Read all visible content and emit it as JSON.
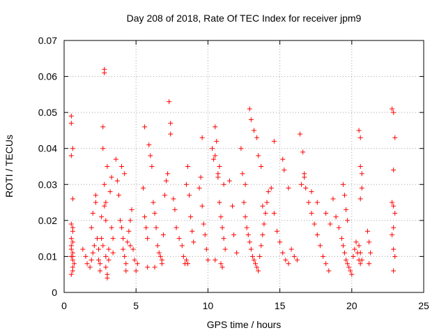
{
  "chart_data": {
    "type": "scatter",
    "title": "Day 208 of 2018, Rate Of TEC Index for receiver jpm9",
    "xlabel": "GPS time / hours",
    "ylabel": "ROTI / TECUs",
    "xlim": [
      0,
      25
    ],
    "ylim": [
      0,
      0.07
    ],
    "x_ticks": [
      0,
      5,
      10,
      15,
      20,
      25
    ],
    "x_tick_labels": [
      "0",
      "5",
      "10",
      "15",
      "20",
      "25"
    ],
    "y_ticks": [
      0,
      0.01,
      0.02,
      0.03,
      0.04,
      0.05,
      0.06,
      0.07
    ],
    "y_tick_labels": [
      "0",
      "0.01",
      "0.02",
      "0.03",
      "0.04",
      "0.05",
      "0.06",
      "0.07"
    ],
    "grid": true,
    "marker": "+",
    "color": "#ff0000",
    "series": [
      {
        "name": "ROTI",
        "x": [
          0.5,
          0.5,
          0.6,
          0.5,
          0.6,
          0.5,
          0.6,
          0.5,
          0.6,
          0.5,
          0.6,
          0.5,
          0.6,
          0.7,
          0.6,
          0.5,
          0.6,
          0.5,
          0.6,
          0.6,
          1.3,
          1.5,
          1.6,
          1.8,
          1.9,
          2.0,
          2.1,
          2.2,
          2.0,
          1.9,
          2.2,
          2.3,
          2.4,
          2.4,
          2.5,
          2.5,
          2.6,
          2.6,
          2.7,
          2.7,
          2.7,
          2.8,
          2.8,
          2.9,
          2.9,
          3.0,
          3.0,
          3.1,
          3.1,
          3.2,
          3.3,
          3.3,
          3.4,
          3.4,
          2.9,
          2.9,
          3.0,
          2.8,
          2.8,
          3.6,
          3.7,
          3.8,
          3.9,
          4.0,
          4.1,
          4.1,
          4.2,
          4.3,
          4.3,
          4.4,
          4.5,
          4.6,
          4.7,
          4.8,
          4.9,
          5.0,
          5.1,
          4.0,
          4.2,
          4.6,
          5.5,
          5.6,
          5.7,
          5.8,
          5.9,
          6.0,
          6.1,
          6.2,
          6.3,
          6.4,
          6.5,
          6.6,
          6.7,
          6.8,
          6.9,
          7.0,
          7.1,
          7.2,
          5.8,
          6.3,
          6.8,
          7.3,
          7.4,
          7.4,
          5.6,
          7.6,
          7.7,
          7.8,
          8.0,
          8.2,
          8.3,
          8.4,
          8.5,
          8.6,
          8.7,
          8.8,
          8.9,
          9.0,
          8.5,
          8.6,
          9.4,
          9.5,
          9.6,
          9.7,
          9.8,
          9.9,
          10.0,
          9.6,
          10.3,
          10.4,
          10.5,
          10.6,
          10.7,
          10.8,
          10.9,
          11.0,
          11.1,
          11.2,
          10.5,
          10.9,
          11.0,
          11.1,
          10.8,
          10.7,
          10.5,
          11.5,
          11.7,
          11.8,
          12.0,
          12.3,
          12.4,
          12.5,
          12.6,
          12.7,
          12.8,
          12.9,
          13.0,
          13.1,
          13.2,
          13.3,
          13.4,
          13.5,
          13.6,
          13.7,
          13.8,
          13.9,
          14.0,
          14.1,
          14.2,
          12.9,
          13.0,
          13.2,
          13.4,
          13.5,
          13.7,
          12.6,
          13.8,
          14.4,
          14.6,
          14.8,
          15.0,
          15.2,
          15.4,
          15.6,
          15.8,
          16.0,
          16.2,
          14.6,
          15.2,
          15.3,
          15.6,
          16.4,
          16.6,
          16.7,
          16.8,
          17.0,
          17.2,
          17.4,
          17.6,
          17.8,
          18.0,
          18.2,
          18.4,
          16.5,
          16.7,
          17.2,
          17.6,
          18.2,
          18.5,
          18.7,
          18.9,
          19.1,
          19.3,
          19.4,
          19.5,
          19.6,
          19.7,
          19.8,
          19.9,
          20.0,
          20.1,
          20.2,
          20.3,
          20.4,
          20.5,
          20.6,
          19.4,
          19.5,
          19.6,
          19.7,
          20.5,
          20.6,
          20.6,
          20.7,
          20.7,
          20.6,
          20.5,
          20.6,
          20.7,
          21.1,
          21.2,
          21.3,
          21.2,
          22.8,
          22.9,
          23.0,
          22.9,
          22.8,
          22.9,
          23.0,
          22.9,
          22.8,
          22.9,
          23.0,
          22.9
        ],
        "y": [
          0.049,
          0.047,
          0.04,
          0.038,
          0.026,
          0.019,
          0.017,
          0.015,
          0.014,
          0.012,
          0.011,
          0.01,
          0.009,
          0.008,
          0.007,
          0.005,
          0.018,
          0.013,
          0.01,
          0.006,
          0.012,
          0.01,
          0.008,
          0.007,
          0.009,
          0.011,
          0.013,
          0.027,
          0.022,
          0.018,
          0.025,
          0.015,
          0.012,
          0.009,
          0.008,
          0.006,
          0.021,
          0.015,
          0.046,
          0.04,
          0.013,
          0.062,
          0.061,
          0.01,
          0.007,
          0.005,
          0.004,
          0.009,
          0.012,
          0.028,
          0.032,
          0.018,
          0.015,
          0.011,
          0.025,
          0.02,
          0.035,
          0.03,
          0.024,
          0.037,
          0.031,
          0.027,
          0.02,
          0.018,
          0.015,
          0.012,
          0.01,
          0.008,
          0.006,
          0.014,
          0.017,
          0.02,
          0.023,
          0.012,
          0.009,
          0.006,
          0.008,
          0.035,
          0.033,
          0.013,
          0.029,
          0.021,
          0.018,
          0.015,
          0.041,
          0.038,
          0.035,
          0.025,
          0.022,
          0.018,
          0.013,
          0.011,
          0.01,
          0.009,
          0.016,
          0.027,
          0.031,
          0.033,
          0.007,
          0.007,
          0.008,
          0.053,
          0.047,
          0.044,
          0.046,
          0.026,
          0.023,
          0.018,
          0.015,
          0.013,
          0.01,
          0.008,
          0.03,
          0.035,
          0.027,
          0.021,
          0.017,
          0.014,
          0.009,
          0.008,
          0.029,
          0.032,
          0.024,
          0.019,
          0.016,
          0.012,
          0.009,
          0.043,
          0.04,
          0.037,
          0.046,
          0.042,
          0.032,
          0.025,
          0.021,
          0.018,
          0.015,
          0.012,
          0.009,
          0.008,
          0.007,
          0.03,
          0.035,
          0.033,
          0.038,
          0.031,
          0.024,
          0.016,
          0.011,
          0.04,
          0.033,
          0.025,
          0.021,
          0.018,
          0.016,
          0.014,
          0.012,
          0.01,
          0.009,
          0.008,
          0.007,
          0.006,
          0.01,
          0.013,
          0.016,
          0.019,
          0.022,
          0.025,
          0.028,
          0.051,
          0.048,
          0.045,
          0.043,
          0.038,
          0.035,
          0.03,
          0.024,
          0.029,
          0.022,
          0.017,
          0.014,
          0.011,
          0.009,
          0.008,
          0.012,
          0.01,
          0.009,
          0.042,
          0.037,
          0.034,
          0.029,
          0.044,
          0.039,
          0.032,
          0.029,
          0.025,
          0.022,
          0.019,
          0.016,
          0.013,
          0.01,
          0.008,
          0.006,
          0.03,
          0.033,
          0.028,
          0.025,
          0.022,
          0.019,
          0.026,
          0.021,
          0.018,
          0.015,
          0.013,
          0.011,
          0.009,
          0.008,
          0.007,
          0.006,
          0.005,
          0.01,
          0.012,
          0.014,
          0.011,
          0.009,
          0.008,
          0.03,
          0.027,
          0.023,
          0.02,
          0.045,
          0.043,
          0.035,
          0.033,
          0.029,
          0.026,
          0.013,
          0.011,
          0.009,
          0.017,
          0.014,
          0.011,
          0.008,
          0.051,
          0.05,
          0.043,
          0.034,
          0.025,
          0.024,
          0.022,
          0.018,
          0.016,
          0.012,
          0.01,
          0.006
        ]
      }
    ]
  }
}
